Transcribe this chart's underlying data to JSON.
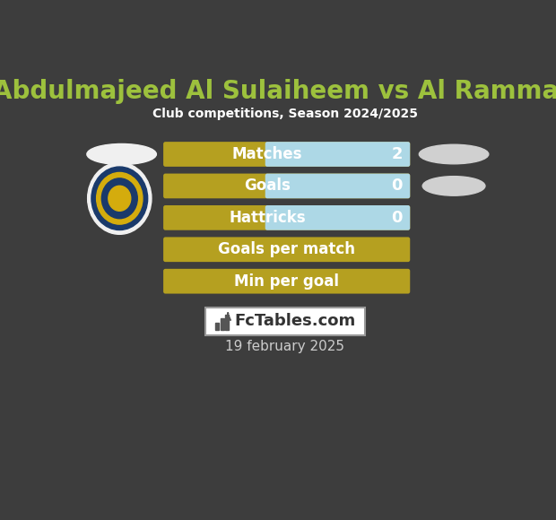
{
  "title": "Abdulmajeed Al Sulaiheem vs Al Rammah",
  "subtitle": "Club competitions, Season 2024/2025",
  "date": "19 february 2025",
  "background_color": "#3d3d3d",
  "title_color": "#9dc13d",
  "subtitle_color": "#ffffff",
  "date_color": "#cccccc",
  "rows": [
    {
      "label": "Matches",
      "right_val": "2",
      "has_cyan": true
    },
    {
      "label": "Goals",
      "right_val": "0",
      "has_cyan": true
    },
    {
      "label": "Hattricks",
      "right_val": "0",
      "has_cyan": true
    },
    {
      "label": "Goals per match",
      "right_val": null,
      "has_cyan": false
    },
    {
      "label": "Min per goal",
      "right_val": null,
      "has_cyan": false
    }
  ],
  "bar_gold_color": "#b5a020",
  "bar_cyan_color": "#add8e6",
  "bar_text_color": "#ffffff",
  "bar_value_color": "#ffffff",
  "left_ellipse_color": "#f0f0f0",
  "right_ellipse_color": "#d0d0d0",
  "logo_border_color": "#f0f0f0",
  "logo_bg_color": "#f5f5f5",
  "logo_blue": "#1a3a6b",
  "logo_gold": "#d4ac0d",
  "fctables_box_color": "#ffffff",
  "fctables_border_color": "#999999",
  "fctables_text_color": "#333333"
}
